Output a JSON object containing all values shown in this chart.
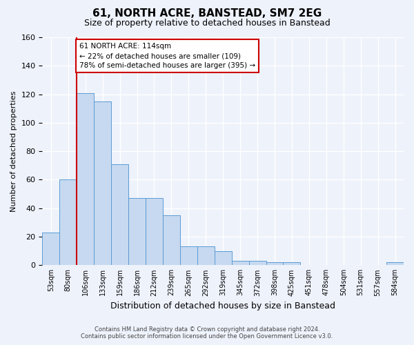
{
  "title": "61, NORTH ACRE, BANSTEAD, SM7 2EG",
  "subtitle": "Size of property relative to detached houses in Banstead",
  "xlabel": "Distribution of detached houses by size in Banstead",
  "ylabel": "Number of detached properties",
  "bar_color": "#c6d9f0",
  "bar_edge_color": "#5b9bd5",
  "background_color": "#eef2fb",
  "grid_color": "#ffffff",
  "bins": [
    "53sqm",
    "80sqm",
    "106sqm",
    "133sqm",
    "159sqm",
    "186sqm",
    "212sqm",
    "239sqm",
    "265sqm",
    "292sqm",
    "319sqm",
    "345sqm",
    "372sqm",
    "398sqm",
    "425sqm",
    "451sqm",
    "478sqm",
    "504sqm",
    "531sqm",
    "557sqm",
    "584sqm"
  ],
  "values": [
    23,
    60,
    121,
    115,
    71,
    47,
    47,
    35,
    13,
    13,
    10,
    3,
    3,
    2,
    2,
    0,
    0,
    0,
    0,
    0,
    2
  ],
  "ylim": [
    0,
    160
  ],
  "yticks": [
    0,
    20,
    40,
    60,
    80,
    100,
    120,
    140,
    160
  ],
  "property_line_x": 2,
  "annotation_text": "61 NORTH ACRE: 114sqm\n← 22% of detached houses are smaller (109)\n78% of semi-detached houses are larger (395) →",
  "annotation_box_color": "white",
  "annotation_box_edge_color": "#cc0000",
  "line_color": "#cc0000",
  "footer_line1": "Contains HM Land Registry data © Crown copyright and database right 2024.",
  "footer_line2": "Contains public sector information licensed under the Open Government Licence v3.0."
}
